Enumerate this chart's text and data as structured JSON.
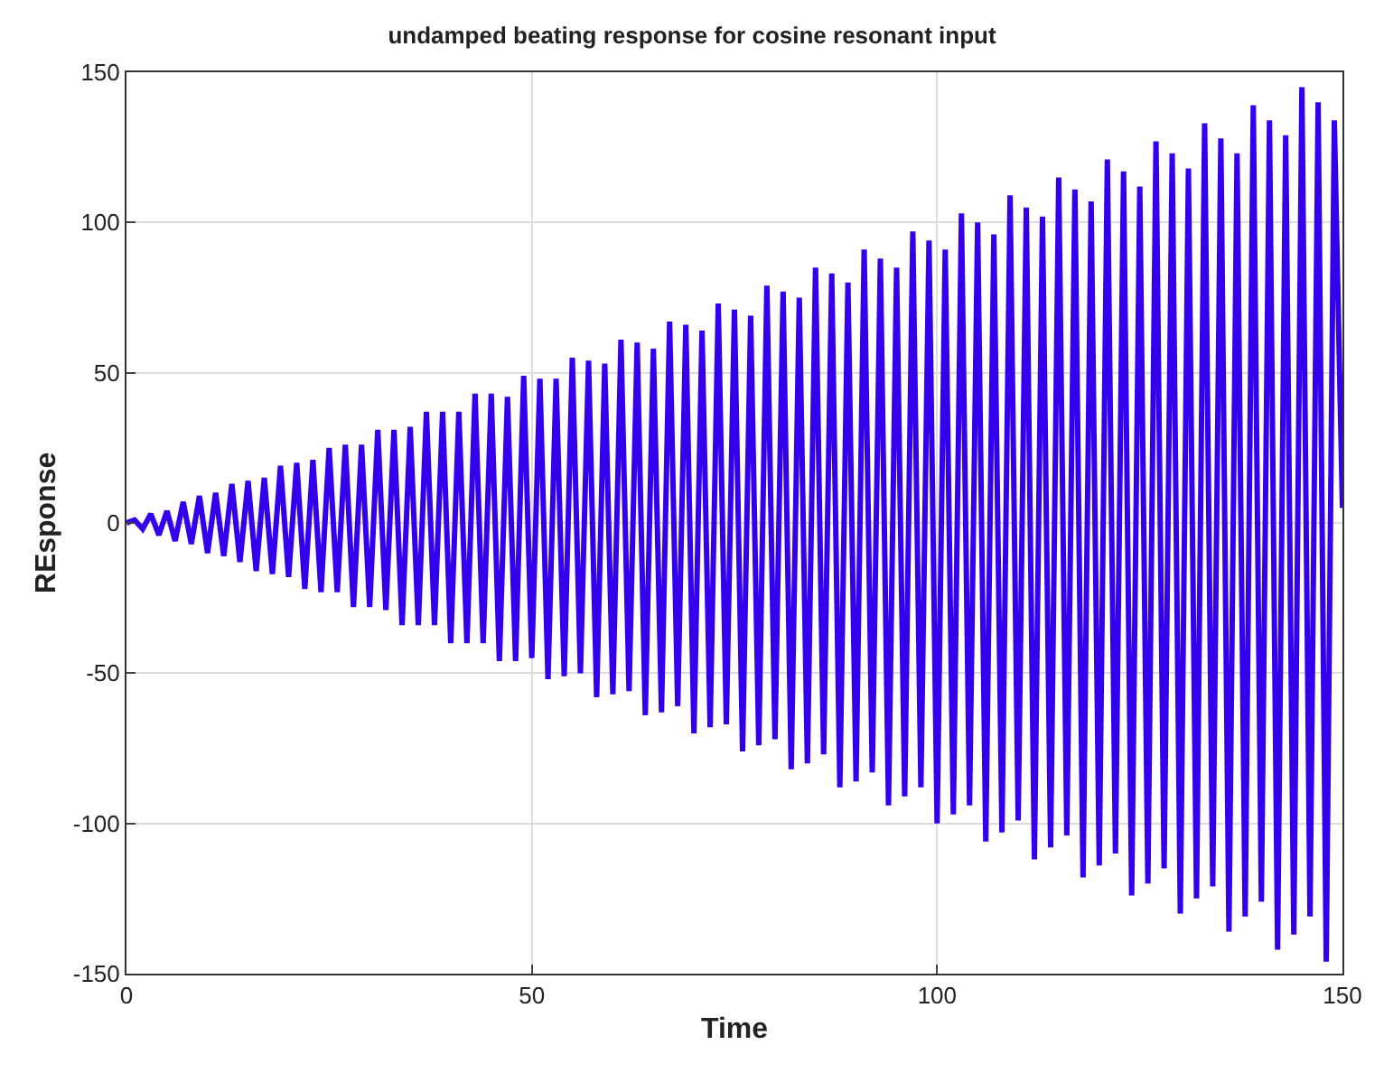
{
  "chart_data": {
    "type": "line",
    "title": "undamped beating response for cosine resonant input",
    "xlabel": "Time",
    "ylabel": "REsponse",
    "x": [
      0,
      1,
      2,
      3,
      4,
      5,
      6,
      7,
      8,
      9,
      10,
      11,
      12,
      13,
      14,
      15,
      16,
      17,
      18,
      19,
      20,
      21,
      22,
      23,
      24,
      25,
      26,
      27,
      28,
      29,
      30,
      31,
      32,
      33,
      34,
      35,
      36,
      37,
      38,
      39,
      40,
      41,
      42,
      43,
      44,
      45,
      46,
      47,
      48,
      49,
      50,
      51,
      52,
      53,
      54,
      55,
      56,
      57,
      58,
      59,
      60,
      61,
      62,
      63,
      64,
      65,
      66,
      67,
      68,
      69,
      70,
      71,
      72,
      73,
      74,
      75,
      76,
      77,
      78,
      79,
      80,
      81,
      82,
      83,
      84,
      85,
      86,
      87,
      88,
      89,
      90,
      91,
      92,
      93,
      94,
      95,
      96,
      97,
      98,
      99,
      100,
      101,
      102,
      103,
      104,
      105,
      106,
      107,
      108,
      109,
      110,
      111,
      112,
      113,
      114,
      115,
      116,
      117,
      118,
      119,
      120,
      121,
      122,
      123,
      124,
      125,
      126,
      127,
      128,
      129,
      130,
      131,
      132,
      133,
      134,
      135,
      136,
      137,
      138,
      139,
      140,
      141,
      142,
      143,
      144,
      145,
      146,
      147,
      148,
      149,
      150
    ],
    "series": [
      {
        "color": "#3300ee",
        "values": [
          0,
          1,
          -2,
          3,
          -4,
          4,
          -6,
          7,
          -7,
          9,
          -10,
          10,
          -11,
          13,
          -13,
          14,
          -16,
          15,
          -17,
          19,
          -18,
          20,
          -22,
          21,
          -23,
          25,
          -23,
          26,
          -28,
          26,
          -28,
          31,
          -29,
          31,
          -34,
          32,
          -34,
          37,
          -34,
          37,
          -40,
          37,
          -40,
          43,
          -40,
          43,
          -46,
          42,
          -46,
          49,
          -45,
          48,
          -52,
          48,
          -51,
          55,
          -50,
          54,
          -58,
          53,
          -57,
          61,
          -56,
          60,
          -64,
          58,
          -63,
          67,
          -61,
          66,
          -70,
          64,
          -68,
          73,
          -67,
          71,
          -76,
          69,
          -74,
          79,
          -72,
          77,
          -82,
          75,
          -80,
          85,
          -77,
          83,
          -88,
          80,
          -86,
          91,
          -83,
          88,
          -94,
          85,
          -91,
          97,
          -88,
          94,
          -100,
          91,
          -97,
          103,
          -94,
          100,
          -106,
          96,
          -103,
          109,
          -99,
          105,
          -112,
          102,
          -108,
          115,
          -104,
          111,
          -118,
          107,
          -114,
          121,
          -110,
          117,
          -124,
          112,
          -120,
          127,
          -115,
          123,
          -130,
          118,
          -125,
          133,
          -121,
          128,
          -136,
          123,
          -131,
          139,
          -126,
          134,
          -142,
          129,
          -137,
          145,
          -131,
          140,
          -146,
          134,
          5
        ]
      }
    ],
    "xlim": [
      0,
      150
    ],
    "xticks": [
      0,
      50,
      100,
      150
    ],
    "ylim": [
      -150,
      150
    ],
    "yticks": [
      -150,
      -100,
      -50,
      0,
      50,
      100,
      150
    ],
    "grid": true,
    "marker": "none",
    "line_style": "solid"
  }
}
